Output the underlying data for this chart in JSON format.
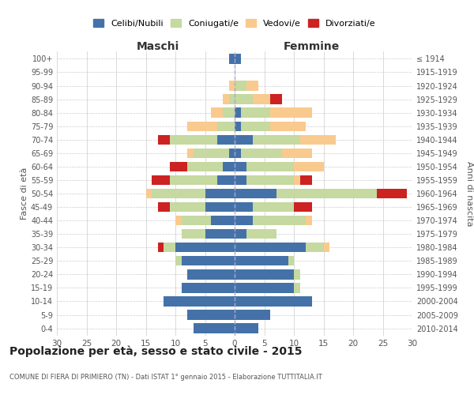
{
  "age_groups": [
    "0-4",
    "5-9",
    "10-14",
    "15-19",
    "20-24",
    "25-29",
    "30-34",
    "35-39",
    "40-44",
    "45-49",
    "50-54",
    "55-59",
    "60-64",
    "65-69",
    "70-74",
    "75-79",
    "80-84",
    "85-89",
    "90-94",
    "95-99",
    "100+"
  ],
  "birth_years": [
    "2010-2014",
    "2005-2009",
    "2000-2004",
    "1995-1999",
    "1990-1994",
    "1985-1989",
    "1980-1984",
    "1975-1979",
    "1970-1974",
    "1965-1969",
    "1960-1964",
    "1955-1959",
    "1950-1954",
    "1945-1949",
    "1940-1944",
    "1935-1939",
    "1930-1934",
    "1925-1929",
    "1920-1924",
    "1915-1919",
    "≤ 1914"
  ],
  "males": {
    "celibi": [
      7,
      8,
      12,
      9,
      8,
      9,
      10,
      5,
      4,
      5,
      5,
      3,
      2,
      1,
      3,
      0,
      0,
      0,
      0,
      0,
      1
    ],
    "coniugati": [
      0,
      0,
      0,
      0,
      0,
      1,
      2,
      4,
      5,
      6,
      9,
      8,
      6,
      6,
      8,
      3,
      2,
      1,
      0,
      0,
      0
    ],
    "vedovi": [
      0,
      0,
      0,
      0,
      0,
      0,
      0,
      0,
      1,
      0,
      1,
      0,
      0,
      1,
      0,
      5,
      2,
      1,
      1,
      0,
      0
    ],
    "divorziati": [
      0,
      0,
      0,
      0,
      0,
      0,
      1,
      0,
      0,
      2,
      0,
      3,
      3,
      0,
      2,
      0,
      0,
      0,
      0,
      0,
      0
    ]
  },
  "females": {
    "nubili": [
      4,
      6,
      13,
      10,
      10,
      9,
      12,
      2,
      3,
      3,
      7,
      2,
      2,
      1,
      3,
      1,
      1,
      0,
      0,
      0,
      1
    ],
    "coniugate": [
      0,
      0,
      0,
      1,
      1,
      1,
      3,
      5,
      9,
      7,
      17,
      8,
      8,
      7,
      8,
      5,
      5,
      3,
      2,
      0,
      0
    ],
    "vedove": [
      0,
      0,
      0,
      0,
      0,
      0,
      1,
      0,
      1,
      0,
      0,
      1,
      5,
      5,
      6,
      6,
      7,
      3,
      2,
      0,
      0
    ],
    "divorziate": [
      0,
      0,
      0,
      0,
      0,
      0,
      0,
      0,
      0,
      3,
      5,
      2,
      0,
      0,
      0,
      0,
      0,
      2,
      0,
      0,
      0
    ]
  },
  "colors": {
    "celibi": "#4472a8",
    "coniugati": "#c5d9a0",
    "vedovi": "#f9ca8e",
    "divorziati": "#cc2222"
  },
  "legend_labels": [
    "Celibi/Nubili",
    "Coniugati/e",
    "Vedovi/e",
    "Divorziati/e"
  ],
  "title": "Popolazione per età, sesso e stato civile - 2015",
  "subtitle": "COMUNE DI FIERA DI PRIMIERO (TN) - Dati ISTAT 1° gennaio 2015 - Elaborazione TUTTITALIA.IT",
  "xlabel_left": "Maschi",
  "xlabel_right": "Femmine",
  "ylabel_left": "Fasce di età",
  "ylabel_right": "Anni di nascita",
  "xlim": 30,
  "bg_color": "#ffffff",
  "grid_color": "#cccccc"
}
